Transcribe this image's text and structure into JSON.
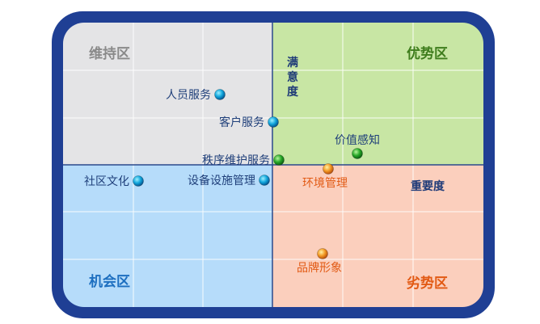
{
  "quadrants": {
    "top_left": {
      "label": "维持区",
      "bg": "#e4e4e6",
      "label_color": "#8a8a8a"
    },
    "top_right": {
      "label": "优势区",
      "bg": "#c8e6a4",
      "label_color": "#3f7d1d"
    },
    "bottom_left": {
      "label": "机会区",
      "bg": "#b6dcfa",
      "label_color": "#1d6fc0"
    },
    "bottom_right": {
      "label": "劣势区",
      "bg": "#fbcfbd",
      "label_color": "#e25a14"
    }
  },
  "axes": {
    "vertical_label": "满意度",
    "horizontal_label": "重要度"
  },
  "points": [
    {
      "label": "人员服务",
      "color": "blue",
      "text_color": "#1f3f7a",
      "label_side": "left"
    },
    {
      "label": "客户服务",
      "color": "blue",
      "text_color": "#1f3f7a",
      "label_side": "left"
    },
    {
      "label": "秩序维护服务",
      "color": "green",
      "text_color": "#1f3f7a",
      "label_side": "left"
    },
    {
      "label": "社区文化",
      "color": "blue",
      "text_color": "#1f3f7a",
      "label_side": "left"
    },
    {
      "label": "设备设施管理",
      "color": "blue",
      "text_color": "#1f3f7a",
      "label_side": "left"
    },
    {
      "label": "价值感知",
      "color": "green",
      "text_color": "#1f3f7a",
      "label_side": "above"
    },
    {
      "label": "环境管理",
      "color": "orange",
      "text_color": "#e25a14",
      "label_side": "below"
    },
    {
      "label": "品牌形象",
      "color": "orange",
      "text_color": "#e25a14",
      "label_side": "below"
    }
  ],
  "colors": {
    "frame": "#1f3f94",
    "divider": "#2b4a8c",
    "grid": "#ffffff"
  }
}
